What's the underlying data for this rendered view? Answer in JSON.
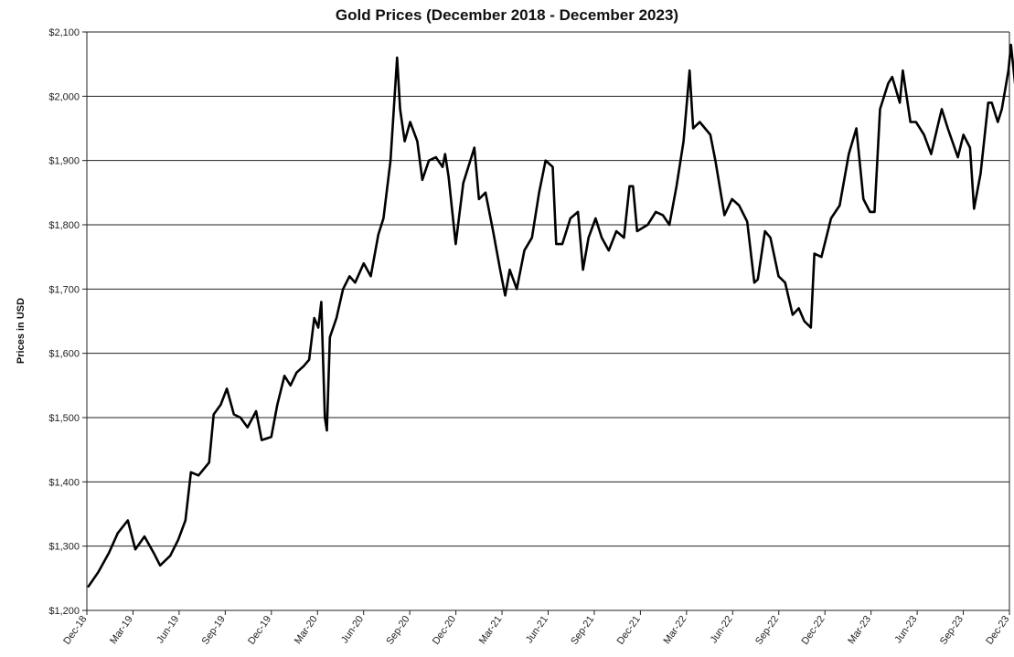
{
  "chart_data": {
    "type": "line",
    "title": "Gold Prices (December 2018 - December 2023)",
    "xlabel": "",
    "ylabel": "Prices in USD",
    "ylim": [
      1200,
      2100
    ],
    "yticks": [
      "$1,200",
      "$1,300",
      "$1,400",
      "$1,500",
      "$1,600",
      "$1,700",
      "$1,800",
      "$1,900",
      "$2,000",
      "$2,100"
    ],
    "xticks": [
      "Dec-18",
      "Mar-19",
      "Jun-19",
      "Sep-19",
      "Dec-19",
      "Mar-20",
      "Jun-20",
      "Sep-20",
      "Dec-20",
      "Mar-21",
      "Jun-21",
      "Sep-21",
      "Dec-21",
      "Mar-22",
      "Jun-22",
      "Sep-22",
      "Dec-22",
      "Mar-23",
      "Jun-23",
      "Sep-23",
      "Dec-23"
    ],
    "grid": "horizontal",
    "line_color": "#000000",
    "series": [
      {
        "x": [
          "2018-12-03",
          "2018-12-24",
          "2019-01-14",
          "2019-01-31",
          "2019-02-20",
          "2019-03-07",
          "2019-03-25",
          "2019-04-12",
          "2019-04-25",
          "2019-05-15",
          "2019-05-31",
          "2019-06-14",
          "2019-06-25",
          "2019-07-10",
          "2019-07-31",
          "2019-08-09",
          "2019-08-23",
          "2019-09-04",
          "2019-09-18",
          "2019-10-01",
          "2019-10-15",
          "2019-11-01",
          "2019-11-12",
          "2019-12-01",
          "2019-12-13",
          "2019-12-27",
          "2020-01-08",
          "2020-01-20",
          "2020-02-03",
          "2020-02-14",
          "2020-02-24",
          "2020-03-03",
          "2020-03-09",
          "2020-03-16",
          "2020-03-20",
          "2020-03-26",
          "2020-04-08",
          "2020-04-21",
          "2020-05-04",
          "2020-05-15",
          "2020-06-01",
          "2020-06-15",
          "2020-06-30",
          "2020-07-10",
          "2020-07-24",
          "2020-08-06",
          "2020-08-12",
          "2020-08-21",
          "2020-09-01",
          "2020-09-15",
          "2020-09-25",
          "2020-10-08",
          "2020-10-22",
          "2020-11-04",
          "2020-11-09",
          "2020-11-16",
          "2020-11-30",
          "2020-12-15",
          "2021-01-06",
          "2021-01-15",
          "2021-01-28",
          "2021-02-12",
          "2021-02-26",
          "2021-03-08",
          "2021-03-17",
          "2021-03-31",
          "2021-04-15",
          "2021-04-30",
          "2021-05-14",
          "2021-05-27",
          "2021-06-10",
          "2021-06-17",
          "2021-06-29",
          "2021-07-15",
          "2021-07-30",
          "2021-08-09",
          "2021-08-20",
          "2021-09-03",
          "2021-09-15",
          "2021-09-29",
          "2021-10-14",
          "2021-10-29",
          "2021-11-09",
          "2021-11-16",
          "2021-11-24",
          "2021-12-15",
          "2021-12-31",
          "2022-01-14",
          "2022-01-27",
          "2022-02-10",
          "2022-02-24",
          "2022-03-08",
          "2022-03-15",
          "2022-03-28",
          "2022-04-18",
          "2022-04-28",
          "2022-05-16",
          "2022-05-31",
          "2022-06-14",
          "2022-06-30",
          "2022-07-14",
          "2022-07-21",
          "2022-08-04",
          "2022-08-15",
          "2022-08-31",
          "2022-09-13",
          "2022-09-28",
          "2022-10-10",
          "2022-10-21",
          "2022-11-03",
          "2022-11-10",
          "2022-11-24",
          "2022-12-13",
          "2022-12-30",
          "2023-01-17",
          "2023-02-01",
          "2023-02-15",
          "2023-02-28",
          "2023-03-09",
          "2023-03-20",
          "2023-04-05",
          "2023-04-13",
          "2023-04-28",
          "2023-05-04",
          "2023-05-19",
          "2023-05-30",
          "2023-06-15",
          "2023-06-29",
          "2023-07-14",
          "2023-07-20",
          "2023-08-01",
          "2023-08-21",
          "2023-09-01",
          "2023-09-14",
          "2023-09-22",
          "2023-10-05",
          "2023-10-20",
          "2023-10-27",
          "2023-11-08",
          "2023-11-16",
          "2023-11-29",
          "2023-12-04",
          "2023-12-12",
          "2023-12-22",
          "2023-12-29"
        ],
        "values": [
          1236,
          1260,
          1290,
          1320,
          1340,
          1295,
          1315,
          1290,
          1270,
          1285,
          1310,
          1340,
          1415,
          1410,
          1430,
          1505,
          1520,
          1545,
          1505,
          1500,
          1485,
          1510,
          1465,
          1470,
          1520,
          1565,
          1550,
          1570,
          1580,
          1590,
          1655,
          1640,
          1680,
          1500,
          1480,
          1625,
          1655,
          1700,
          1720,
          1710,
          1740,
          1720,
          1785,
          1810,
          1900,
          2060,
          1980,
          1930,
          1960,
          1930,
          1870,
          1900,
          1905,
          1890,
          1910,
          1875,
          1770,
          1865,
          1920,
          1840,
          1850,
          1790,
          1730,
          1690,
          1730,
          1700,
          1760,
          1780,
          1850,
          1900,
          1890,
          1770,
          1770,
          1810,
          1820,
          1730,
          1780,
          1810,
          1780,
          1760,
          1790,
          1780,
          1860,
          1860,
          1790,
          1800,
          1820,
          1815,
          1800,
          1860,
          1930,
          2040,
          1950,
          1960,
          1940,
          1900,
          1815,
          1840,
          1830,
          1805,
          1710,
          1715,
          1790,
          1780,
          1720,
          1710,
          1660,
          1670,
          1650,
          1640,
          1755,
          1750,
          1810,
          1830,
          1910,
          1950,
          1840,
          1820,
          1820,
          1980,
          2020,
          2030,
          1990,
          2040,
          1960,
          1960,
          1940,
          1910,
          1960,
          1980,
          1950,
          1905,
          1940,
          1920,
          1825,
          1880,
          1990,
          1990,
          1960,
          1980,
          2040,
          2080,
          2020,
          2060,
          2070
        ]
      }
    ]
  }
}
